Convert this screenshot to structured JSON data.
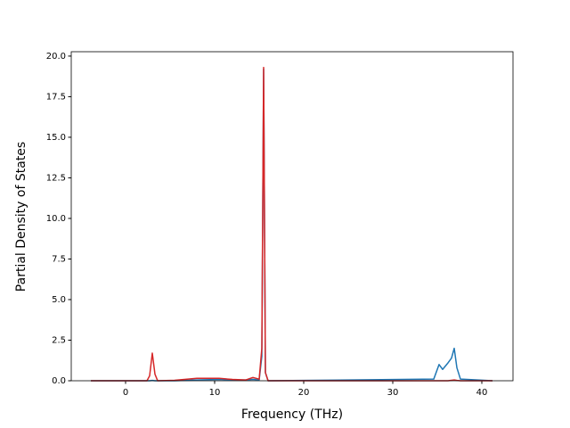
{
  "chart_data": {
    "type": "line",
    "xlabel": "Frequency (THz)",
    "ylabel": "Partial Density of States",
    "x": [
      -3.9,
      2.4,
      2.7,
      3.0,
      3.3,
      3.6,
      5.5,
      8,
      10.5,
      12,
      13.5,
      14.3,
      15.0,
      15.3,
      15.5,
      15.7,
      16.0,
      34.6,
      35.2,
      35.6,
      36.2,
      36.6,
      36.9,
      37.2,
      37.6,
      41.2
    ],
    "series": [
      {
        "color": "#1f77b4",
        "values": [
          0,
          0,
          0,
          0.02,
          0,
          0,
          0,
          0.05,
          0.08,
          0.05,
          0.05,
          0.08,
          0.05,
          1.5,
          19.2,
          0.5,
          0,
          0.1,
          1.0,
          0.7,
          1.1,
          1.4,
          2.0,
          0.8,
          0.1,
          0
        ]
      },
      {
        "color": "#d62728",
        "values": [
          0,
          0,
          0.3,
          1.7,
          0.4,
          0,
          0.03,
          0.15,
          0.15,
          0.08,
          0.05,
          0.2,
          0.1,
          2,
          19.3,
          0.5,
          0,
          0,
          0,
          0,
          0,
          0.03,
          0.05,
          0.02,
          0,
          0
        ]
      }
    ],
    "xlim": [
      -6.1,
      43.5
    ],
    "ylim": [
      0,
      20.27
    ],
    "xticks": [
      0,
      10,
      20,
      30,
      40
    ],
    "yticks": [
      {
        "value": 0,
        "label": "0.0"
      },
      {
        "value": 2.5,
        "label": "2.5"
      },
      {
        "value": 5,
        "label": "5.0"
      },
      {
        "value": 7.5,
        "label": "7.5"
      },
      {
        "value": 10,
        "label": "10.0"
      },
      {
        "value": 12.5,
        "label": "12.5"
      },
      {
        "value": 15,
        "label": "15.0"
      },
      {
        "value": 17.5,
        "label": "17.5"
      },
      {
        "value": 20,
        "label": "20.0"
      }
    ]
  }
}
